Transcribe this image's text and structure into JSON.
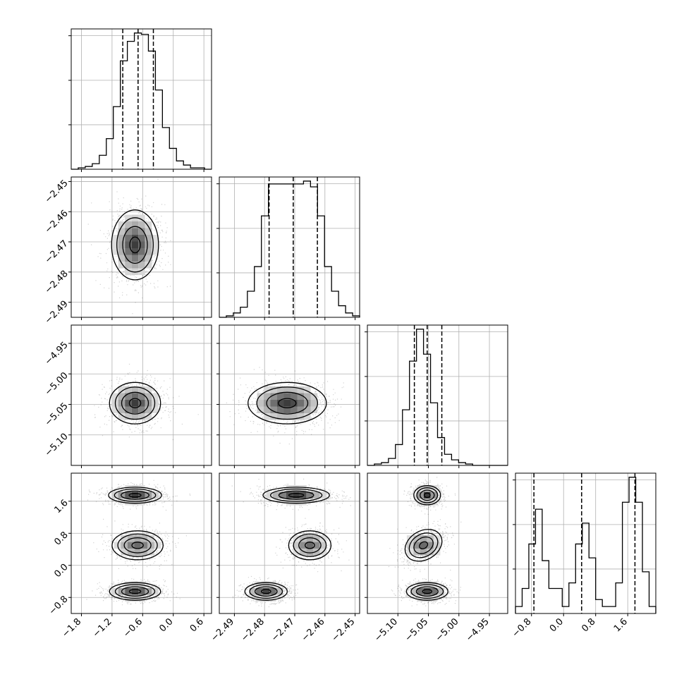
{
  "chart_data": {
    "type": "corner",
    "title": "",
    "grid": true,
    "parameters": [
      {
        "range": [
          -2.0,
          0.75
        ],
        "ticks": [
          -1.8,
          -1.2,
          -0.6,
          0.0,
          0.6
        ],
        "tick_labels": [
          "−1.8",
          "−1.2",
          "−0.6",
          "0.0",
          "0.6"
        ],
        "quantiles": [
          -0.99,
          -0.69,
          -0.39
        ],
        "histogram": [
          0,
          1,
          2,
          4,
          10,
          22,
          45,
          78,
          92,
          98,
          97,
          85,
          57,
          30,
          15,
          6,
          3,
          1,
          1,
          0
        ]
      },
      {
        "range": [
          -2.495,
          -2.4485
        ],
        "ticks": [
          -2.49,
          -2.48,
          -2.47,
          -2.46,
          -2.45
        ],
        "tick_labels": [
          "−2.49",
          "−2.48",
          "−2.47",
          "−2.46",
          "−2.45"
        ],
        "quantiles": [
          -2.4785,
          -2.4705,
          -2.4625
        ],
        "histogram": [
          0,
          1,
          3,
          7,
          18,
          35,
          70,
          92,
          92,
          92,
          92,
          92,
          94,
          90,
          70,
          35,
          18,
          8,
          3,
          1
        ]
      },
      {
        "range": [
          -5.15,
          -4.92
        ],
        "ticks": [
          -5.1,
          -5.05,
          -5.0,
          -4.95
        ],
        "tick_labels": [
          "−5.10",
          "−5.05",
          "−5.00",
          "−4.95"
        ],
        "quantiles": [
          -5.073,
          -5.052,
          -5.028
        ],
        "histogram": [
          0,
          1,
          2,
          5,
          15,
          40,
          75,
          98,
          80,
          45,
          20,
          8,
          4,
          2,
          1,
          0,
          0,
          0,
          0,
          0
        ]
      },
      {
        "range": [
          -1.2,
          2.3
        ],
        "ticks": [
          -0.8,
          0.0,
          0.8,
          1.6
        ],
        "tick_labels": [
          "−0.8",
          "0.0",
          "0.8",
          "1.6"
        ],
        "quantiles": [
          -0.74,
          0.45,
          1.78
        ],
        "histogram": [
          5,
          18,
          50,
          75,
          38,
          18,
          18,
          5,
          22,
          50,
          65,
          40,
          10,
          5,
          5,
          22,
          80,
          98,
          80,
          30,
          5
        ]
      }
    ],
    "pairs": [
      {
        "row": 1,
        "col": 0,
        "clusters": [
          {
            "cx": -0.75,
            "cy": -2.471,
            "sx": 0.23,
            "sy": 0.0058,
            "w": 1
          }
        ]
      },
      {
        "row": 2,
        "col": 0,
        "clusters": [
          {
            "cx": -0.75,
            "cy": -5.048,
            "sx": 0.25,
            "sy": 0.017,
            "w": 1
          }
        ]
      },
      {
        "row": 2,
        "col": 1,
        "clusters": [
          {
            "cx": -2.4725,
            "cy": -5.048,
            "sx": 0.0065,
            "sy": 0.017,
            "w": 1
          }
        ]
      },
      {
        "row": 3,
        "col": 0,
        "clusters": [
          {
            "cx": -0.75,
            "cy": 1.75,
            "sx": 0.26,
            "sy": 0.1,
            "w": 1
          },
          {
            "cx": -0.7,
            "cy": 0.5,
            "sx": 0.25,
            "sy": 0.18,
            "w": 0.75
          },
          {
            "cx": -0.75,
            "cy": -0.65,
            "sx": 0.25,
            "sy": 0.11,
            "w": 0.95
          }
        ]
      },
      {
        "row": 3,
        "col": 1,
        "clusters": [
          {
            "cx": -2.4695,
            "cy": 1.75,
            "sx": 0.0055,
            "sy": 0.1,
            "w": 1
          },
          {
            "cx": -2.465,
            "cy": 0.5,
            "sx": 0.0035,
            "sy": 0.18,
            "w": 0.75
          },
          {
            "cx": -2.4795,
            "cy": -0.65,
            "sx": 0.0035,
            "sy": 0.11,
            "w": 0.95
          }
        ]
      },
      {
        "row": 3,
        "col": 2,
        "clusters": [
          {
            "cx": -5.052,
            "cy": 1.75,
            "sx": 0.011,
            "sy": 0.12,
            "w": 1
          },
          {
            "cx": -5.058,
            "cy": 0.5,
            "sx": 0.016,
            "sy": 0.18,
            "w": 0.75,
            "tilt": 0.5
          },
          {
            "cx": -5.052,
            "cy": -0.65,
            "sx": 0.017,
            "sy": 0.11,
            "w": 0.95
          }
        ]
      }
    ]
  }
}
